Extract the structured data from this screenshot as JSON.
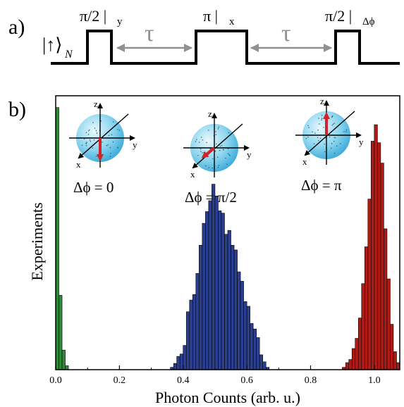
{
  "panel_a": {
    "label": "a)",
    "state_label": "|↑⟩",
    "state_subscript": "N",
    "pulses": [
      {
        "text": "π/2 |",
        "sub": "y"
      },
      {
        "text": "π |",
        "sub": "x"
      },
      {
        "text": "π/2 |",
        "sub": "Δϕ"
      }
    ],
    "delays": [
      "τ",
      "τ"
    ]
  },
  "panel_b": {
    "label": "b)",
    "axis_z": "z",
    "axis_y": "y",
    "axis_x": "x",
    "spheres": [
      {
        "phase_label": "Δϕ = 0",
        "arrow": "down"
      },
      {
        "phase_label": "Δϕ = π/2",
        "arrow": "diagonal"
      },
      {
        "phase_label": "Δϕ = π",
        "arrow": "up"
      }
    ]
  },
  "colors": {
    "green": "#2e8b3a",
    "blue": "#2a3f8f",
    "red": "#b01a14",
    "sphere": "#5ec3e6",
    "arrow": "#d2222a",
    "grey_arrow": "#909090"
  },
  "chart_data": {
    "type": "bar",
    "xlabel": "Photon Counts (arb. u.)",
    "ylabel": "Experiments",
    "xlim": [
      0,
      1.08
    ],
    "ylim": [
      0,
      350
    ],
    "xticks": [
      "0.0",
      "0.2",
      "0.4",
      "0.6",
      "0.8",
      "1.0"
    ],
    "bin_width": 0.01,
    "series": [
      {
        "color_key": "green",
        "x": [
          0.0,
          0.01,
          0.02,
          0.03
        ],
        "values": [
          335,
          95,
          25,
          5
        ]
      },
      {
        "color_key": "blue",
        "x": [
          0.36,
          0.37,
          0.38,
          0.39,
          0.4,
          0.41,
          0.42,
          0.43,
          0.44,
          0.45,
          0.46,
          0.47,
          0.48,
          0.49,
          0.5,
          0.51,
          0.52,
          0.53,
          0.54,
          0.55,
          0.56,
          0.57,
          0.58,
          0.59,
          0.6,
          0.61,
          0.62,
          0.63,
          0.64,
          0.65,
          0.66
        ],
        "values": [
          3,
          8,
          17,
          20,
          31,
          74,
          89,
          96,
          123,
          159,
          187,
          202,
          216,
          237,
          222,
          203,
          200,
          173,
          178,
          159,
          153,
          125,
          113,
          87,
          81,
          59,
          52,
          41,
          19,
          10,
          3
        ]
      },
      {
        "color_key": "red",
        "x": [
          0.9,
          0.91,
          0.92,
          0.93,
          0.94,
          0.95,
          0.96,
          0.97,
          0.98,
          0.99,
          1.0,
          1.01,
          1.02,
          1.03,
          1.04,
          1.05,
          1.06,
          1.07
        ],
        "values": [
          3,
          9,
          13,
          27,
          40,
          66,
          110,
          157,
          218,
          292,
          313,
          290,
          264,
          180,
          116,
          58,
          23,
          9
        ]
      }
    ]
  }
}
